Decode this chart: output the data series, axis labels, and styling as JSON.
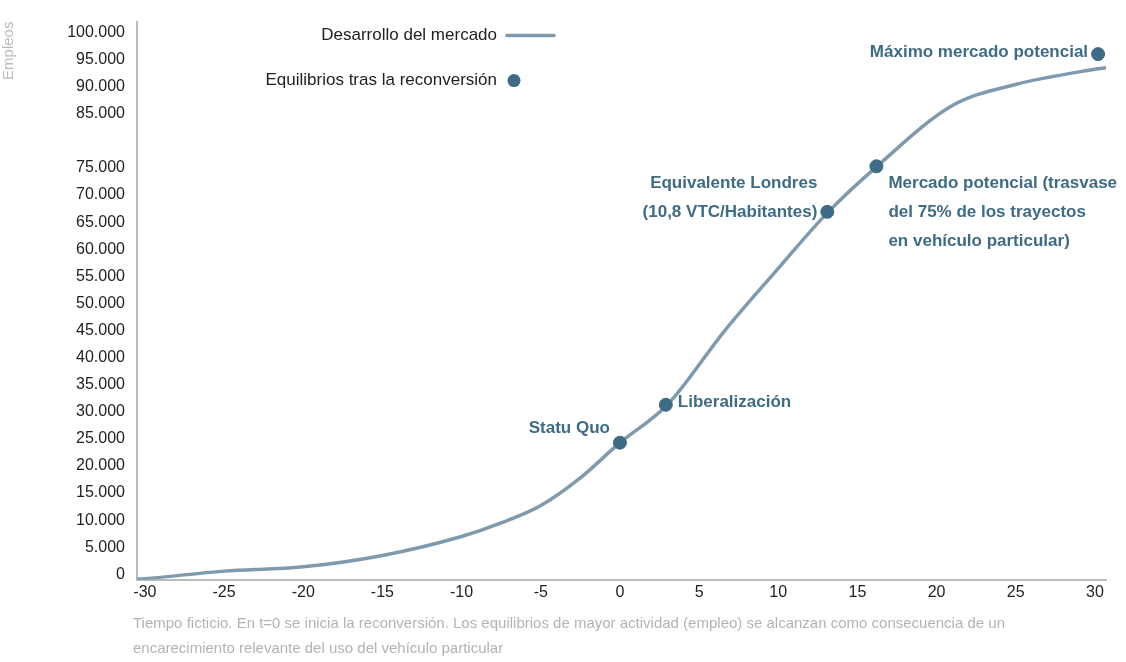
{
  "chart_data": {
    "type": "line",
    "xlabel": "Tiempo ficticio. En t=0 se inicia la reconversión. Los equilibrios de mayor actividad (empleo) se alcanzan como consecuencia de un encarecimiento relevante del uso del vehículo particular",
    "ylabel": "Empleos",
    "xlim": [
      -30.5,
      30.7
    ],
    "xticks": [
      -30,
      -25,
      -20,
      -15,
      -10,
      -5,
      0,
      5,
      10,
      15,
      20,
      25,
      30
    ],
    "ylim": [
      -1000,
      102000
    ],
    "yticks": [
      0,
      {
        "value": 5000,
        "label": "5.000"
      },
      {
        "value": 10000,
        "label": "10.000"
      },
      {
        "value": 15000,
        "label": "15.000"
      },
      {
        "value": 20000,
        "label": "20.000"
      },
      {
        "value": 25000,
        "label": "25.000"
      },
      {
        "value": 30000,
        "label": "30.000"
      },
      {
        "value": 35000,
        "label": "35.000"
      },
      {
        "value": 40000,
        "label": "40.000"
      },
      {
        "value": 45000,
        "label": "45.000"
      },
      {
        "value": 50000,
        "label": "50.000"
      },
      {
        "value": 55000,
        "label": "55.000"
      },
      {
        "value": 60000,
        "label": "60.000"
      },
      {
        "value": 65000,
        "label": "65.000"
      },
      {
        "value": 70000,
        "label": "70.000"
      },
      {
        "value": 75000,
        "label": "75.000"
      },
      {
        "value": 85000,
        "label": "85.000"
      },
      {
        "value": 90000,
        "label": "90.000"
      },
      {
        "value": 95000,
        "label": "95.000"
      },
      {
        "value": 100000,
        "label": "100.000"
      }
    ],
    "grid": false,
    "legend": "top left",
    "marker": "none",
    "line_style": "solid",
    "series": [
      {
        "name": "Desarrollo del mercado",
        "color": "#7f9aad",
        "x": [
          -30.5,
          -30,
          -25,
          -20,
          -15,
          -10,
          -7.5,
          -5,
          -2.5,
          0,
          3,
          6.6,
          10.1,
          13.1,
          16.2,
          21,
          25,
          30,
          30.7
        ],
        "values": [
          -900,
          -800,
          600,
          1400,
          3500,
          7000,
          9500,
          12700,
          17800,
          24300,
          31300,
          44900,
          56800,
          66700,
          75200,
          86500,
          90400,
          93200,
          93500
        ]
      },
      {
        "name": "Equilibrios tras la reconversión",
        "type": "scatter",
        "marker": "circle",
        "color": "#3e6b85",
        "x": [
          0,
          2.9,
          13.1,
          16.2,
          30.2
        ],
        "values": [
          24300,
          31300,
          66900,
          75300,
          96000
        ]
      }
    ],
    "annotations": [
      {
        "text": "Statu Quo",
        "x": 0,
        "y": 24300
      },
      {
        "text": "Liberalización",
        "x": 2.9,
        "y": 31300
      },
      {
        "text": "Equivalente Londres\n(10,8 VTC/Habitantes)",
        "x": 13.1,
        "y": 66900
      },
      {
        "text": "Mercado potencial (trasvase\ndel 75% de los trayectos\nen vehículo particular)",
        "x": 16.2,
        "y": 75300
      },
      {
        "text": "Máximo mercado potencial",
        "x": 30.2,
        "y": 96000
      }
    ]
  }
}
